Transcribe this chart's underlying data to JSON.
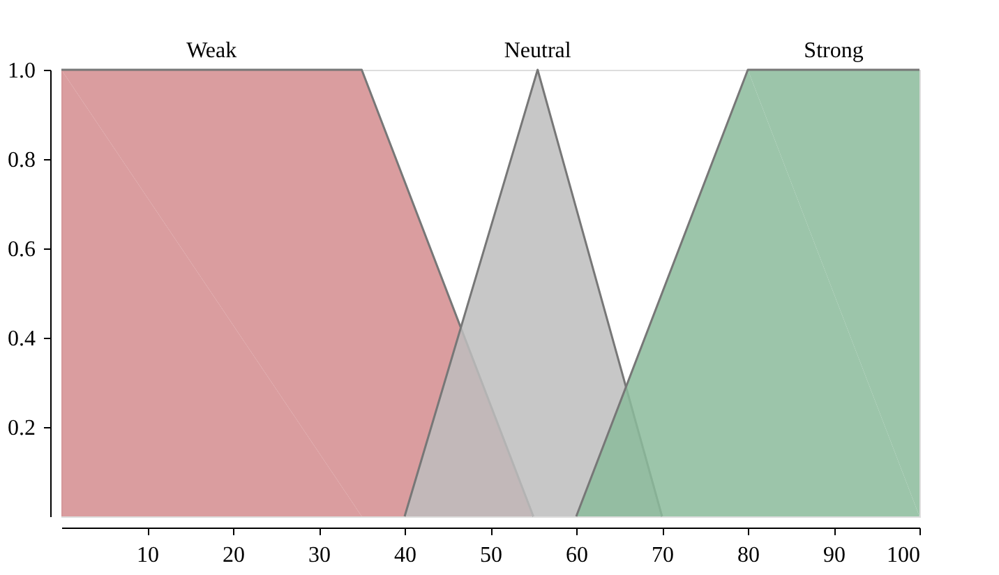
{
  "chart_data": {
    "type": "area",
    "series": [
      {
        "name": "Weak",
        "color": "#d48c8e",
        "x": [
          0,
          35,
          55
        ],
        "values": [
          1,
          1,
          0
        ]
      },
      {
        "name": "Neutral",
        "color": "#bdbdbd",
        "x": [
          40,
          55.5,
          70
        ],
        "values": [
          0,
          1,
          0
        ]
      },
      {
        "name": "Strong",
        "color": "#8bbb9b",
        "x": [
          60,
          80,
          100
        ],
        "values": [
          0,
          1,
          1
        ]
      }
    ],
    "xlim": [
      0,
      100
    ],
    "xticks": [
      10,
      20,
      30,
      40,
      50,
      60,
      70,
      80,
      90,
      100
    ],
    "ylim": [
      0,
      1
    ],
    "yticks": [
      {
        "value": 0.2,
        "label": "0.2"
      },
      {
        "value": 0.4,
        "label": "0.4"
      },
      {
        "value": 0.6,
        "label": "0.6"
      },
      {
        "value": 0.8,
        "label": "0.8"
      },
      {
        "value": 1.0,
        "label": "1.0"
      }
    ],
    "grid": false
  }
}
